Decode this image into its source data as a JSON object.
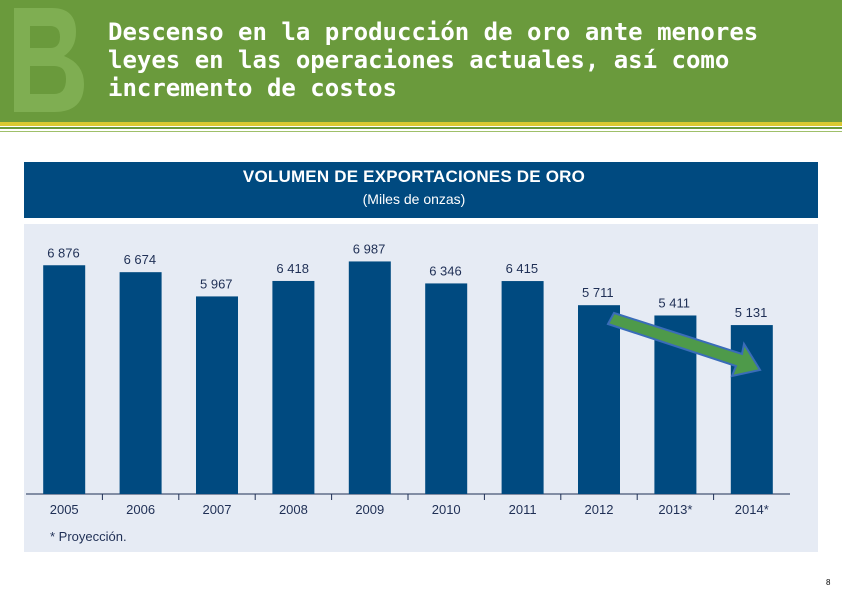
{
  "slide": {
    "title": "Descenso en la producción de oro ante menores leyes en las operaciones actuales, así como incremento de costos",
    "page_number": "8"
  },
  "colors": {
    "header_green": "#6a9a3c",
    "accent_yellow": "#d9c832",
    "bar_blue": "#004a80",
    "chart_background": "#e6ebf4",
    "arrow_green": "#4e9a4a",
    "arrow_blue": "#3a6cb8"
  },
  "icons": {
    "logo": "letter-b-logo",
    "trend_arrow": "down-trend-arrow"
  },
  "chart_data": {
    "type": "bar",
    "title": "VOLUMEN DE EXPORTACIONES DE ORO",
    "subtitle": "(Miles de onzas)",
    "categories": [
      "2005",
      "2006",
      "2007",
      "2008",
      "2009",
      "2010",
      "2011",
      "2012",
      "2013*",
      "2014*"
    ],
    "values": [
      6876,
      6674,
      5967,
      6418,
      6987,
      6346,
      6415,
      5711,
      5411,
      5131
    ],
    "value_labels": [
      "6 876",
      "6 674",
      "5 967",
      "6 418",
      "6 987",
      "6 346",
      "6 415",
      "5 711",
      "5 411",
      "5 131"
    ],
    "ylim": [
      0,
      7000
    ],
    "grid": false,
    "footnote": "* Proyección.",
    "annotation": "downward trend arrow from 2012 to 2014*"
  }
}
